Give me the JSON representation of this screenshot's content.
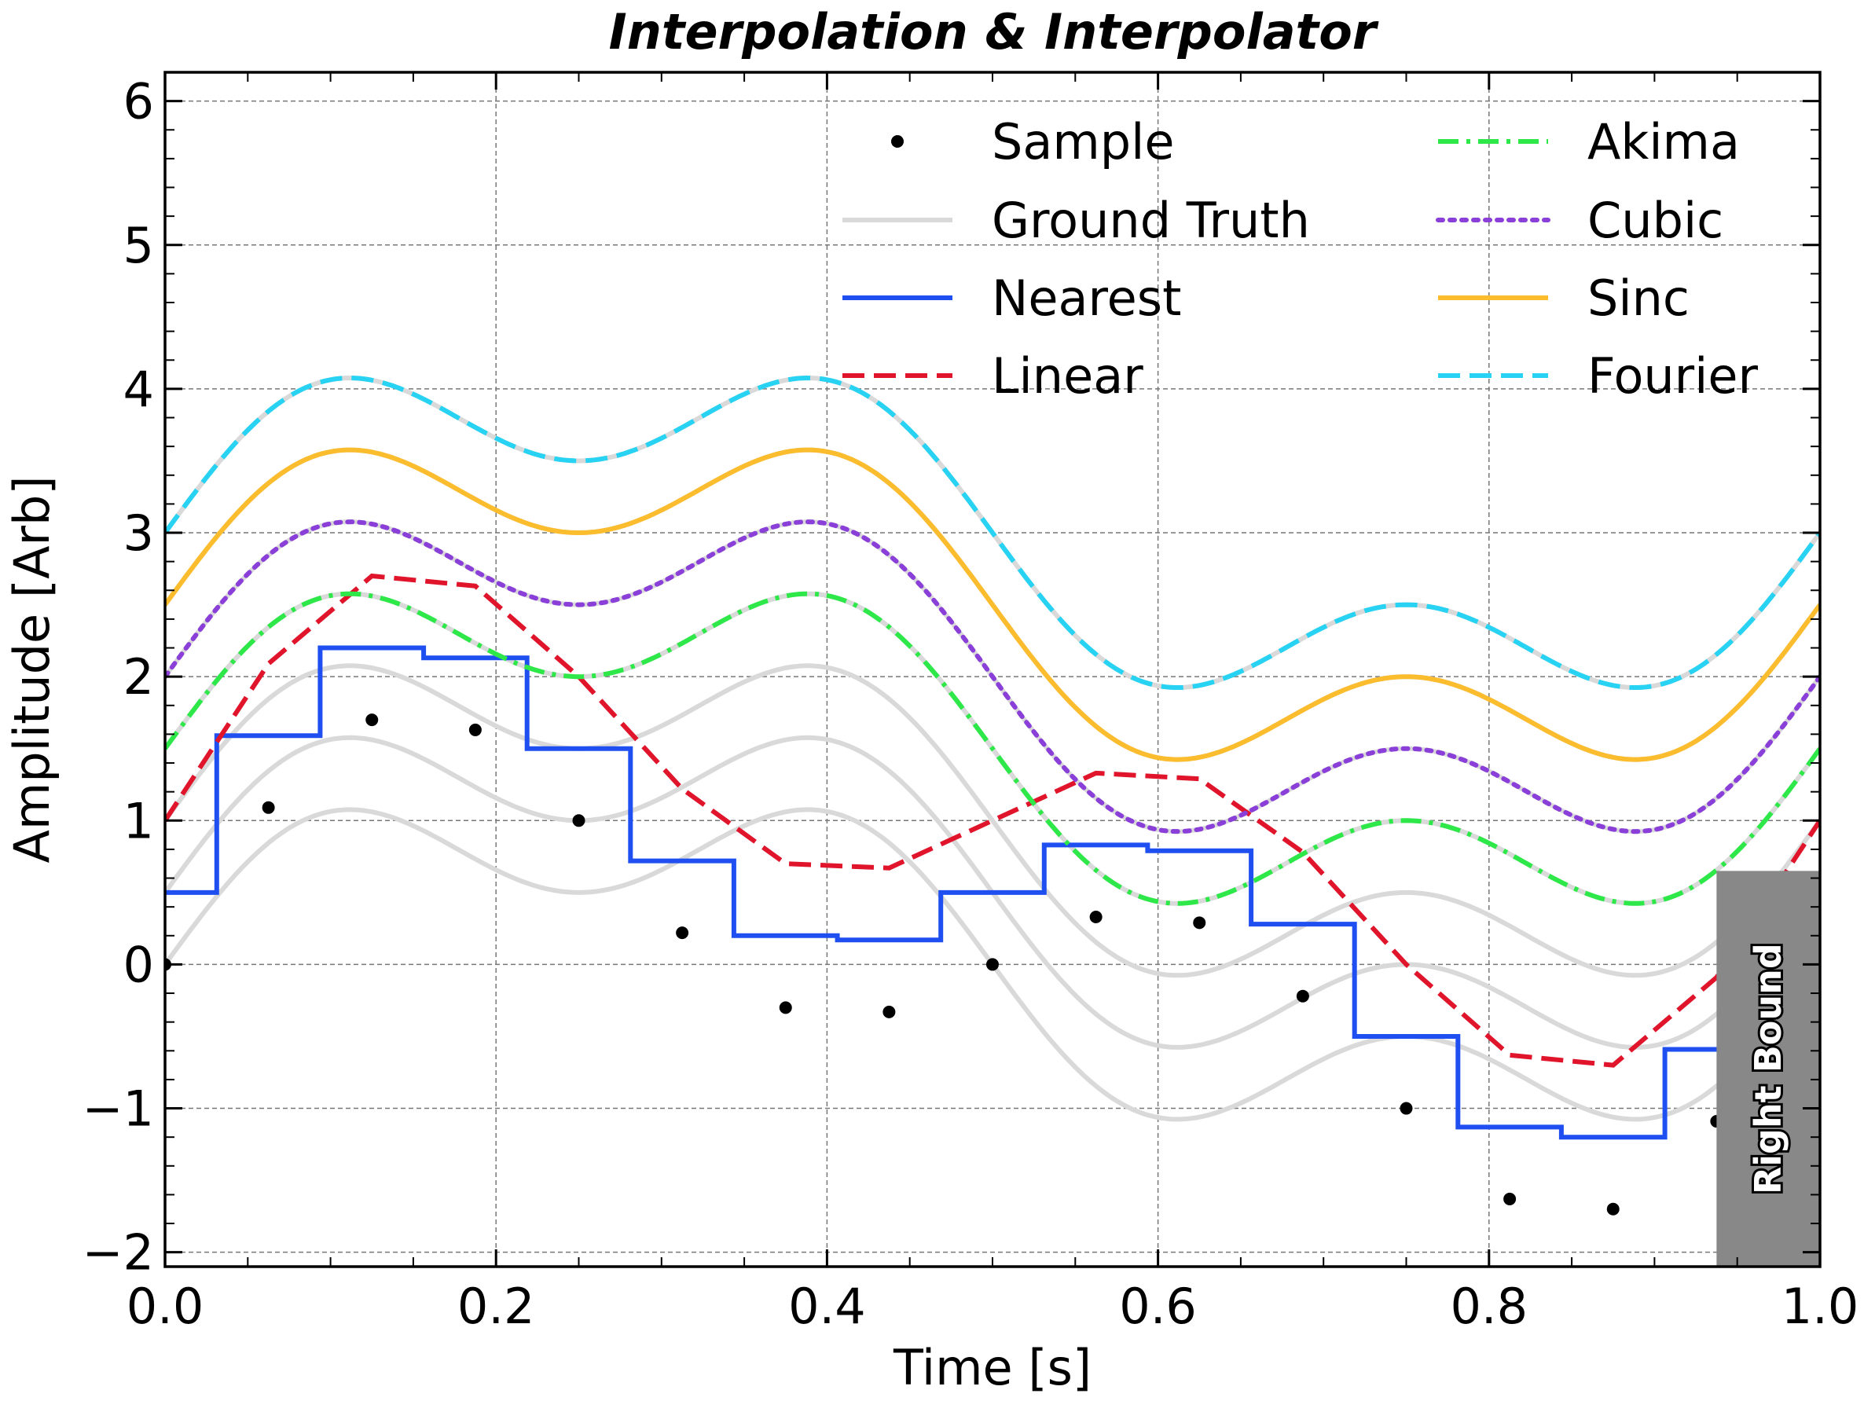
{
  "chart_data": {
    "type": "line",
    "title": "Interpolation & Interpolator",
    "xlabel": "Time [s]",
    "ylabel": "Amplitude [Arb]",
    "xlim": [
      0.0,
      1.0
    ],
    "ylim": [
      -2.1,
      6.2
    ],
    "x_ticks": [
      0.0,
      0.2,
      0.4,
      0.6,
      0.8,
      1.0
    ],
    "x_tick_labels": [
      "0.0",
      "0.2",
      "0.4",
      "0.6",
      "0.8",
      "1.0"
    ],
    "y_ticks": [
      -2,
      -1,
      0,
      1,
      2,
      3,
      4,
      5,
      6
    ],
    "y_tick_labels": [
      "−2",
      "−1",
      "0",
      "1",
      "2",
      "3",
      "4",
      "5",
      "6"
    ],
    "grid": true,
    "legend_placement": "top-right",
    "series": [
      {
        "name": "Sample",
        "style": "markers",
        "color": "#000000",
        "offset": 0,
        "x": [
          0.0,
          0.0625,
          0.125,
          0.1875,
          0.25,
          0.3125,
          0.375,
          0.4375,
          0.5,
          0.5625,
          0.625,
          0.6875,
          0.75,
          0.8125,
          0.875,
          0.9375
        ],
        "y": [
          0.0,
          1.09,
          1.7,
          1.63,
          1.0,
          0.22,
          -0.3,
          -0.33,
          0.0,
          0.33,
          0.29,
          -0.22,
          -1.0,
          -1.63,
          -1.7,
          -1.09
        ]
      },
      {
        "name": "Ground Truth",
        "style": "solid",
        "color": "#d9d9d9"
      },
      {
        "name": "Nearest",
        "style": "solid",
        "color": "#1f4ff0",
        "offset": 0.5
      },
      {
        "name": "Linear",
        "style": "dashed",
        "color": "#e0142a",
        "offset": 1.0
      },
      {
        "name": "Akima",
        "style": "dashdot",
        "color": "#2ee84a",
        "offset": 1.5
      },
      {
        "name": "Cubic",
        "style": "dotted",
        "color": "#8b3fd9",
        "offset": 2.0
      },
      {
        "name": "Sinc",
        "style": "solid",
        "color": "#fbbc2e",
        "offset": 2.5
      },
      {
        "name": "Fourier",
        "style": "dashed",
        "color": "#27d2f2",
        "offset": 3.0
      }
    ],
    "ground_truth_offsets": [
      0,
      0.5,
      1.0,
      1.5,
      2.0,
      2.5,
      3.0
    ],
    "annotation": {
      "text": "Right Bound",
      "x_range": [
        0.9375,
        1.0
      ],
      "y_range": [
        -2.1,
        0.65
      ],
      "color": "#888888"
    }
  }
}
